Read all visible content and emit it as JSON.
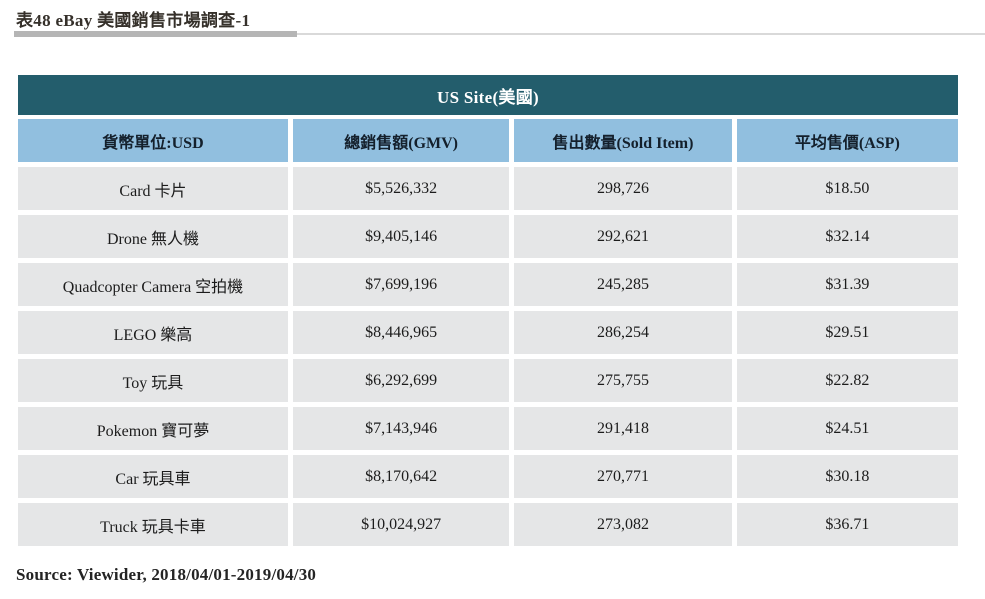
{
  "title": "表48 eBay 美國銷售市場調查-1",
  "table": {
    "banner": "US Site(美國)",
    "columns": [
      "貨幣單位:USD",
      "總銷售額(GMV)",
      "售出數量(Sold Item)",
      "平均售價(ASP)"
    ],
    "rows": [
      [
        "Card 卡片",
        "$5,526,332",
        "298,726",
        "$18.50"
      ],
      [
        "Drone 無人機",
        "$9,405,146",
        "292,621",
        "$32.14"
      ],
      [
        "Quadcopter Camera 空拍機",
        "$7,699,196",
        "245,285",
        "$31.39"
      ],
      [
        "LEGO 樂高",
        "$8,446,965",
        "286,254",
        "$29.51"
      ],
      [
        "Toy 玩具",
        "$6,292,699",
        "275,755",
        "$22.82"
      ],
      [
        "Pokemon 寶可夢",
        "$7,143,946",
        "291,418",
        "$24.51"
      ],
      [
        "Car 玩具車",
        "$8,170,642",
        "270,771",
        "$30.18"
      ],
      [
        "Truck 玩具卡車",
        "$10,024,927",
        "273,082",
        "$36.71"
      ]
    ]
  },
  "source": "Source: Viewider, 2018/04/01-2019/04/30",
  "colors": {
    "banner_bg": "#235d6c",
    "banner_text": "#ffffff",
    "header_bg": "#91bfdf",
    "row_bg": "#e5e6e7",
    "rule_thick": "#b5b5b5",
    "rule_thin": "#d9d9d9"
  }
}
